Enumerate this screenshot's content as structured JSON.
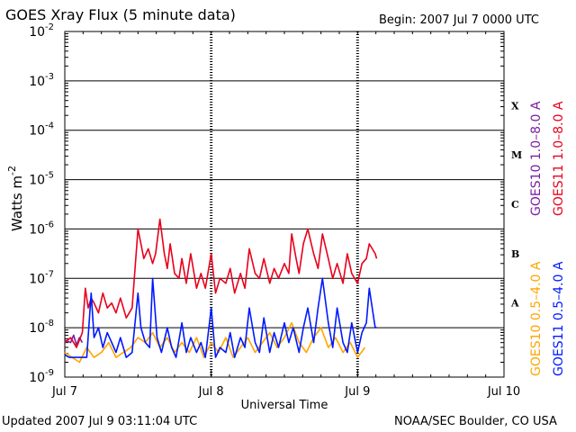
{
  "header": {
    "title": "GOES Xray Flux (5 minute data)",
    "begin": "Begin:  2007 Jul 7 0000 UTC"
  },
  "footer": {
    "updated": "Updated 2007 Jul  9 03:11:04 UTC",
    "credit": "NOAA/SEC Boulder, CO USA"
  },
  "colors": {
    "goes10_long": "#7b1fa2",
    "goes11_long": "#e8001c",
    "goes10_short": "#ffa500",
    "goes11_short": "#0019ff"
  },
  "chart_data": {
    "type": "line",
    "title": "GOES Xray Flux (5 minute data)",
    "xlabel": "Universal Time",
    "ylabel": "Watts m",
    "ylabel_sup": "-2",
    "y_scale": "log",
    "ylim": [
      1e-09,
      0.01
    ],
    "xlim": [
      0,
      3
    ],
    "x_ticks": [
      {
        "x": 0,
        "label": "Jul 7"
      },
      {
        "x": 1,
        "label": "Jul 8"
      },
      {
        "x": 2,
        "label": "Jul 9"
      },
      {
        "x": 3,
        "label": "Jul 10"
      }
    ],
    "y_ticks": [
      {
        "exp": -2,
        "base": "10",
        "sup": "-2"
      },
      {
        "exp": -3,
        "base": "10",
        "sup": "-3"
      },
      {
        "exp": -4,
        "base": "10",
        "sup": "-4"
      },
      {
        "exp": -5,
        "base": "10",
        "sup": "-5"
      },
      {
        "exp": -6,
        "base": "10",
        "sup": "-6"
      },
      {
        "exp": -7,
        "base": "10",
        "sup": "-7"
      },
      {
        "exp": -8,
        "base": "10",
        "sup": "-8"
      },
      {
        "exp": -9,
        "base": "10",
        "sup": "-9"
      }
    ],
    "flare_classes": [
      {
        "label": "X",
        "exp": -3.5
      },
      {
        "label": "M",
        "exp": -4.5
      },
      {
        "label": "C",
        "exp": -5.5
      },
      {
        "label": "B",
        "exp": -6.5
      },
      {
        "label": "A",
        "exp": -7.5
      }
    ],
    "legend": [
      {
        "name": "GOES10 1.0–8.0 A",
        "color": "#7b1fa2"
      },
      {
        "name": "GOES11 1.0–8.0 A",
        "color": "#e8001c"
      },
      {
        "name": "GOES10 0.5–4.0 A",
        "color": "#ffa500"
      },
      {
        "name": "GOES11 0.5–4.0 A",
        "color": "#0019ff"
      }
    ],
    "series": [
      {
        "name": "GOES10 1.0–8.0 A",
        "color": "#7b1fa2",
        "x": [
          0.0,
          0.04,
          0.06,
          0.08,
          0.1,
          0.12
        ],
        "log_values": [
          -8.25,
          -8.3,
          -8.15,
          -8.35,
          -8.2,
          -8.3
        ]
      },
      {
        "name": "GOES11 1.0–8.0 A",
        "color": "#e8001c",
        "x": [
          0.0,
          0.04,
          0.08,
          0.12,
          0.14,
          0.16,
          0.18,
          0.2,
          0.23,
          0.26,
          0.29,
          0.32,
          0.35,
          0.38,
          0.42,
          0.46,
          0.5,
          0.52,
          0.54,
          0.57,
          0.6,
          0.62,
          0.65,
          0.68,
          0.7,
          0.72,
          0.75,
          0.78,
          0.8,
          0.83,
          0.86,
          0.9,
          0.93,
          0.96,
          1.0,
          1.03,
          1.06,
          1.1,
          1.13,
          1.16,
          1.2,
          1.23,
          1.26,
          1.3,
          1.33,
          1.36,
          1.4,
          1.43,
          1.46,
          1.5,
          1.53,
          1.55,
          1.58,
          1.6,
          1.63,
          1.66,
          1.7,
          1.73,
          1.76,
          1.8,
          1.83,
          1.86,
          1.9,
          1.93,
          1.96,
          2.0,
          2.03,
          2.06,
          2.08,
          2.1,
          2.12,
          2.13
        ],
        "log_values": [
          -8.3,
          -8.2,
          -8.4,
          -8.1,
          -7.2,
          -7.6,
          -7.4,
          -7.5,
          -7.7,
          -7.3,
          -7.6,
          -7.5,
          -7.7,
          -7.4,
          -7.8,
          -7.6,
          -6.0,
          -6.3,
          -6.6,
          -6.4,
          -6.7,
          -6.5,
          -5.8,
          -6.5,
          -6.8,
          -6.3,
          -6.9,
          -7.0,
          -6.6,
          -7.1,
          -6.5,
          -7.2,
          -6.9,
          -7.2,
          -6.5,
          -7.3,
          -7.0,
          -7.1,
          -6.8,
          -7.3,
          -6.9,
          -7.2,
          -6.4,
          -6.9,
          -7.0,
          -6.6,
          -7.1,
          -6.8,
          -7.0,
          -6.7,
          -6.9,
          -6.1,
          -6.6,
          -6.9,
          -6.3,
          -6.0,
          -6.5,
          -6.8,
          -6.1,
          -6.6,
          -7.0,
          -6.7,
          -7.1,
          -6.5,
          -6.9,
          -7.1,
          -6.7,
          -6.6,
          -6.3,
          -6.4,
          -6.5,
          -6.6
        ]
      },
      {
        "name": "GOES10 0.5–4.0 A",
        "color": "#ffa500",
        "x": [
          0.0,
          0.05,
          0.1,
          0.15,
          0.2,
          0.25,
          0.3,
          0.35,
          0.4,
          0.45,
          0.5,
          0.55,
          0.6,
          0.65,
          0.7,
          0.75,
          0.8,
          0.85,
          0.9,
          0.95,
          1.0,
          1.05,
          1.1,
          1.15,
          1.2,
          1.25,
          1.3,
          1.35,
          1.4,
          1.45,
          1.5,
          1.55,
          1.6,
          1.65,
          1.7,
          1.75,
          1.8,
          1.85,
          1.9,
          1.95,
          2.0,
          2.05
        ],
        "log_values": [
          -8.5,
          -8.6,
          -8.7,
          -8.4,
          -8.6,
          -8.5,
          -8.3,
          -8.6,
          -8.5,
          -8.4,
          -8.2,
          -8.3,
          -8.1,
          -8.4,
          -8.2,
          -8.5,
          -8.3,
          -8.5,
          -8.2,
          -8.6,
          -8.3,
          -8.5,
          -8.2,
          -8.6,
          -8.4,
          -8.2,
          -8.5,
          -8.3,
          -8.1,
          -8.4,
          -8.2,
          -7.9,
          -8.3,
          -8.5,
          -8.2,
          -8.0,
          -8.4,
          -8.2,
          -8.5,
          -8.3,
          -8.6,
          -8.4
        ]
      },
      {
        "name": "GOES11 0.5–4.0 A",
        "color": "#0019ff",
        "x": [
          0.0,
          0.03,
          0.06,
          0.09,
          0.12,
          0.15,
          0.18,
          0.2,
          0.23,
          0.26,
          0.29,
          0.32,
          0.35,
          0.38,
          0.42,
          0.46,
          0.5,
          0.52,
          0.55,
          0.58,
          0.6,
          0.63,
          0.66,
          0.7,
          0.73,
          0.76,
          0.8,
          0.83,
          0.86,
          0.9,
          0.93,
          0.96,
          1.0,
          1.03,
          1.06,
          1.1,
          1.13,
          1.16,
          1.2,
          1.23,
          1.26,
          1.3,
          1.33,
          1.36,
          1.4,
          1.43,
          1.46,
          1.5,
          1.53,
          1.56,
          1.6,
          1.63,
          1.66,
          1.7,
          1.73,
          1.76,
          1.8,
          1.83,
          1.86,
          1.9,
          1.93,
          1.96,
          2.0,
          2.03,
          2.06,
          2.08,
          2.1,
          2.12,
          2.13
        ],
        "log_values": [
          -8.55,
          -8.6,
          -8.6,
          -8.6,
          -8.6,
          -8.6,
          -7.3,
          -8.2,
          -8.0,
          -8.4,
          -8.1,
          -8.3,
          -8.5,
          -8.2,
          -8.6,
          -8.5,
          -7.3,
          -8.0,
          -8.3,
          -8.4,
          -7.0,
          -8.2,
          -8.5,
          -8.0,
          -8.4,
          -8.6,
          -7.9,
          -8.5,
          -8.2,
          -8.5,
          -8.3,
          -8.6,
          -7.6,
          -8.6,
          -8.4,
          -8.5,
          -8.1,
          -8.6,
          -8.2,
          -8.4,
          -7.6,
          -8.3,
          -8.5,
          -7.8,
          -8.5,
          -8.1,
          -8.4,
          -7.9,
          -8.3,
          -8.0,
          -8.5,
          -8.0,
          -7.6,
          -8.3,
          -7.6,
          -7.0,
          -7.9,
          -8.4,
          -7.6,
          -8.3,
          -8.5,
          -7.9,
          -8.5,
          -8.1,
          -7.9,
          -7.2,
          -7.6,
          -8.0,
          -8.0
        ]
      }
    ]
  }
}
